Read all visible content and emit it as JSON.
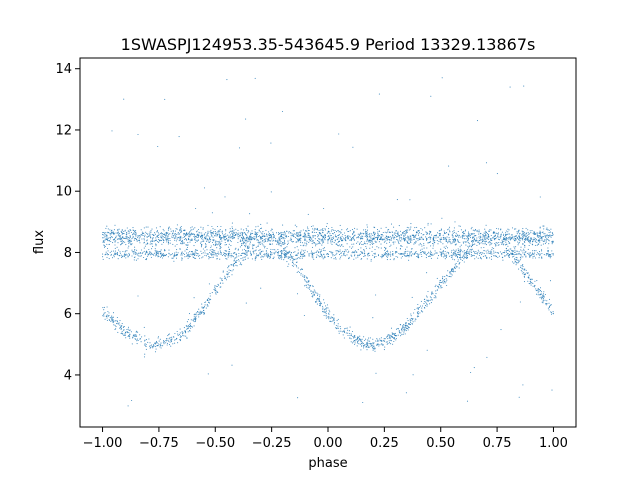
{
  "chart_data": {
    "type": "scatter",
    "title": "1SWASPJ124953.35-543645.9 Period 13329.13867s",
    "xlabel": "phase",
    "ylabel": "flux",
    "xlim": [
      -1.1,
      1.1
    ],
    "ylim": [
      2.3,
      14.35
    ],
    "xticks": [
      -1.0,
      -0.75,
      -0.5,
      -0.25,
      0.0,
      0.25,
      0.5,
      0.75,
      1.0
    ],
    "xtick_labels": [
      "−1.00",
      "−0.75",
      "−0.50",
      "−0.25",
      "0.00",
      "0.25",
      "0.50",
      "0.75",
      "1.00"
    ],
    "yticks": [
      4,
      6,
      8,
      10,
      12,
      14
    ],
    "ytick_labels": [
      "4",
      "6",
      "8",
      "10",
      "12",
      "14"
    ],
    "grid": false,
    "marker_color": "#1f77b4",
    "series": [
      {
        "description_key": "light-curve",
        "bands": [
          {
            "level": 8.5,
            "spread": 0.45,
            "x_range": [
              -1.0,
              1.0
            ]
          },
          {
            "level": 7.95,
            "spread": 0.25,
            "x_range": [
              -1.0,
              1.0
            ]
          }
        ],
        "dip_curve": {
          "x": [
            -1.0,
            -0.9,
            -0.8,
            -0.75,
            -0.65,
            -0.55,
            -0.45,
            -0.35,
            -0.25,
            -0.15,
            -0.05,
            0.05,
            0.15,
            0.2,
            0.25,
            0.35,
            0.45,
            0.55,
            0.65,
            0.75,
            0.85,
            0.95,
            1.0
          ],
          "y": [
            6.1,
            5.4,
            5.05,
            5.0,
            5.3,
            6.2,
            7.3,
            8.1,
            8.4,
            7.7,
            6.5,
            5.5,
            5.05,
            5.0,
            5.05,
            5.6,
            6.5,
            7.4,
            8.2,
            8.4,
            7.6,
            6.6,
            6.0
          ]
        },
        "outlier_range": [
          2.9,
          13.8
        ]
      }
    ]
  }
}
